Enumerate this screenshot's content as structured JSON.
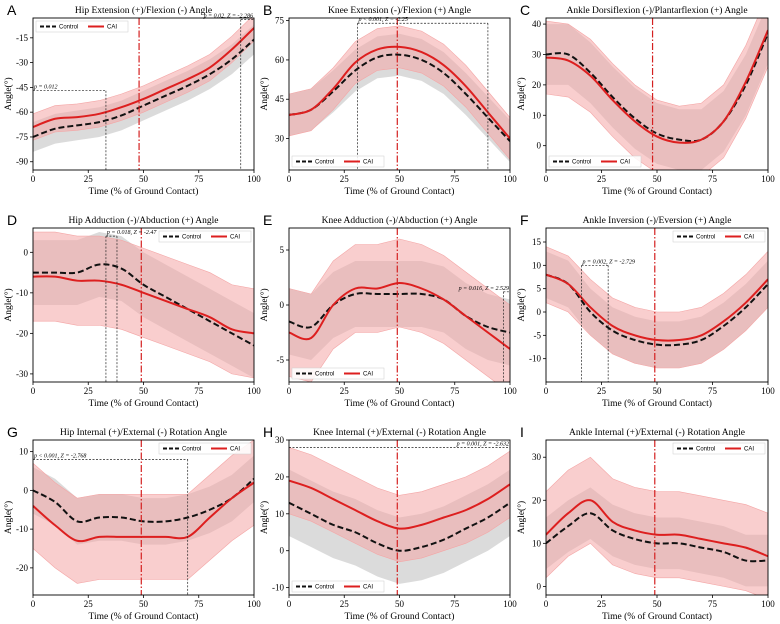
{
  "colors": {
    "control": "#111111",
    "cai": "#dd1f1f",
    "control_band": "#cfcfcf",
    "cai_band": "#f4a6a6",
    "marker": "#d42020"
  },
  "legend": {
    "control": "Control",
    "cai": "CAI"
  },
  "chart_data": [
    {
      "label": "A",
      "title": "Hip Extension (+)/Flexion (-) Angle",
      "type": "line",
      "xlabel": "Time (% of Ground Contact)",
      "ylabel": "Angle(°)",
      "xlim": [
        0,
        100
      ],
      "ylim": [
        -95,
        -3
      ],
      "xticks": [
        "0",
        "25",
        "50",
        "75",
        "100"
      ],
      "yticks": [
        -90,
        -75,
        -60,
        -45,
        -30,
        -15
      ],
      "ytick_labels": [
        "-90",
        "-75",
        "-60",
        "-45",
        "-30",
        "-15"
      ],
      "x": [
        0,
        10,
        20,
        30,
        40,
        50,
        60,
        70,
        80,
        90,
        100
      ],
      "series": [
        {
          "name": "Control",
          "values": [
            -75,
            -70,
            -68,
            -66,
            -62,
            -56,
            -50,
            -44,
            -37,
            -28,
            -16
          ],
          "sd": [
            9,
            9,
            9,
            9,
            9,
            9,
            9,
            9,
            9,
            9,
            9
          ]
        },
        {
          "name": "CAI",
          "values": [
            -69,
            -64,
            -63,
            -61,
            -57,
            -52,
            -46,
            -40,
            -33,
            -22,
            -9
          ],
          "sd": [
            8,
            8,
            8,
            8,
            8,
            8,
            8,
            8,
            8,
            8,
            8
          ]
        }
      ],
      "marker_x": 48,
      "annotations": [
        {
          "text": "p = 0.012",
          "region": [
            0,
            33
          ],
          "level": -47,
          "pos": "left"
        },
        {
          "text": "p = 0.02, Z = -2.286",
          "region": [
            94,
            100
          ],
          "level": -4,
          "pos": "right"
        }
      ],
      "legend_loc": "upper left"
    },
    {
      "label": "B",
      "title": "Knee Extension (-)/Flexion (+) Angle",
      "type": "line",
      "xlabel": "Time (% of Ground Contact)",
      "ylabel": "Angle(°)",
      "xlim": [
        0,
        100
      ],
      "ylim": [
        18,
        76
      ],
      "xticks": [
        "0",
        "25",
        "50",
        "75",
        "100"
      ],
      "yticks": [
        30,
        45,
        60,
        75
      ],
      "ytick_labels": [
        "30",
        "45",
        "60",
        "75"
      ],
      "x": [
        0,
        10,
        20,
        30,
        40,
        50,
        60,
        70,
        80,
        90,
        100
      ],
      "series": [
        {
          "name": "Control",
          "values": [
            39,
            41,
            48,
            56,
            61,
            62,
            60,
            55,
            47,
            38,
            29
          ],
          "sd": [
            8,
            8,
            8,
            8,
            8,
            8,
            8,
            8,
            8,
            8,
            8
          ]
        },
        {
          "name": "CAI",
          "values": [
            39,
            41,
            49,
            59,
            64,
            65,
            63,
            58,
            50,
            40,
            30
          ],
          "sd": [
            8,
            8,
            8,
            8,
            8,
            8,
            8,
            8,
            8,
            8,
            8
          ]
        }
      ],
      "marker_x": 49,
      "annotations": [
        {
          "text": "p < 0.001, Z = -2.25",
          "region": [
            31,
            90
          ],
          "level": 74,
          "pos": "left"
        }
      ],
      "legend_loc": "lower left"
    },
    {
      "label": "C",
      "title": "Ankle Dorsiflexion (-)/Plantarflexion (+) Angle",
      "type": "line",
      "xlabel": "Time (% of Ground Contact)",
      "ylabel": "Angle(°)",
      "xlim": [
        0,
        100
      ],
      "ylim": [
        -8,
        42
      ],
      "xticks": [
        "0",
        "25",
        "50",
        "75",
        "100"
      ],
      "yticks": [
        0,
        10,
        20,
        30,
        40
      ],
      "ytick_labels": [
        "0",
        "10",
        "20",
        "30",
        "40"
      ],
      "x": [
        0,
        10,
        20,
        30,
        40,
        50,
        60,
        70,
        80,
        90,
        100
      ],
      "series": [
        {
          "name": "Control",
          "values": [
            30,
            30,
            24,
            16,
            9,
            4,
            2,
            2,
            8,
            20,
            37
          ],
          "sd": [
            10,
            10,
            10,
            10,
            10,
            10,
            10,
            10,
            10,
            10,
            10
          ]
        },
        {
          "name": "CAI",
          "values": [
            29,
            28,
            23,
            15,
            8,
            3,
            1,
            2,
            8,
            21,
            38
          ],
          "sd": [
            12,
            12,
            12,
            12,
            12,
            12,
            12,
            12,
            12,
            12,
            12
          ]
        }
      ],
      "marker_x": 48,
      "annotations": [],
      "legend_loc": "lower left"
    },
    {
      "label": "D",
      "title": "Hip Adduction (-)/Abduction (+) Angle",
      "type": "line",
      "xlabel": "Time (% of Ground Contact)",
      "ylabel": "Angle(°)",
      "xlim": [
        0,
        100
      ],
      "ylim": [
        -32,
        6
      ],
      "xticks": [
        "0",
        "25",
        "50",
        "75",
        "100"
      ],
      "yticks": [
        -30,
        -20,
        -10,
        0
      ],
      "ytick_labels": [
        "-30",
        "-20",
        "-10",
        "0"
      ],
      "x": [
        0,
        10,
        20,
        30,
        40,
        50,
        60,
        70,
        80,
        90,
        100
      ],
      "series": [
        {
          "name": "Control",
          "values": [
            -5,
            -5,
            -5,
            -3,
            -4,
            -8,
            -11,
            -14,
            -17,
            -20,
            -23
          ],
          "sd": [
            8,
            8,
            8,
            8,
            8,
            8,
            8,
            8,
            8,
            8,
            8
          ]
        },
        {
          "name": "CAI",
          "values": [
            -6,
            -6,
            -7,
            -7,
            -8,
            -10,
            -12,
            -14,
            -16,
            -19,
            -20
          ],
          "sd": [
            11,
            11,
            11,
            11,
            11,
            11,
            11,
            11,
            11,
            11,
            11
          ]
        }
      ],
      "marker_x": 49,
      "annotations": [
        {
          "text": "p = 0.018, Z = -2.47",
          "region": [
            33,
            38
          ],
          "level": 4,
          "pos": "left"
        }
      ],
      "legend_loc": "upper right"
    },
    {
      "label": "E",
      "title": "Knee Adduction (-)/Abduction (+) Angle",
      "type": "line",
      "xlabel": "Time (% of Ground Contact)",
      "ylabel": "Angle(°)",
      "xlim": [
        0,
        100
      ],
      "ylim": [
        -7,
        7
      ],
      "xticks": [
        "0",
        "25",
        "50",
        "75",
        "100"
      ],
      "yticks": [
        -5,
        0,
        5
      ],
      "ytick_labels": [
        "-5",
        "0",
        "5"
      ],
      "x": [
        0,
        10,
        20,
        30,
        40,
        50,
        60,
        70,
        80,
        90,
        100
      ],
      "series": [
        {
          "name": "Control",
          "values": [
            -1.5,
            -2,
            0,
            1,
            1,
            1,
            1,
            0.5,
            -1,
            -2,
            -2.5
          ],
          "sd": [
            3,
            3,
            3,
            3,
            3,
            3,
            3,
            3,
            3,
            3,
            3
          ]
        },
        {
          "name": "CAI",
          "values": [
            -2.5,
            -3,
            0,
            1.5,
            1.5,
            2,
            1.5,
            0.5,
            -1,
            -2.5,
            -4
          ],
          "sd": [
            4,
            4,
            4,
            4,
            4,
            4,
            4,
            4,
            4,
            4,
            4
          ]
        }
      ],
      "marker_x": 49,
      "annotations": [
        {
          "text": "p = 0.016, Z = 2.529",
          "region": [
            97,
            100
          ],
          "level": 1.2,
          "pos": "right"
        }
      ],
      "legend_loc": "lower left"
    },
    {
      "label": "F",
      "title": "Ankle Inversion (-)/Eversion (+) Angle",
      "type": "line",
      "xlabel": "Time (% of Ground Contact)",
      "ylabel": "Angle(°)",
      "xlim": [
        0,
        100
      ],
      "ylim": [
        -15,
        18
      ],
      "xticks": [
        "0",
        "25",
        "50",
        "75",
        "100"
      ],
      "yticks": [
        -10,
        -5,
        0,
        5,
        10,
        15
      ],
      "ytick_labels": [
        "-10",
        "-5",
        "0",
        "5",
        "10",
        "15"
      ],
      "x": [
        0,
        10,
        20,
        30,
        40,
        50,
        60,
        70,
        80,
        90,
        100
      ],
      "series": [
        {
          "name": "Control",
          "values": [
            8,
            6,
            0,
            -4,
            -6,
            -7,
            -7,
            -6,
            -3,
            1,
            6
          ],
          "sd": [
            5,
            5,
            5,
            5,
            5,
            5,
            5,
            5,
            5,
            5,
            5
          ]
        },
        {
          "name": "CAI",
          "values": [
            8,
            6,
            1,
            -3,
            -5,
            -6,
            -6,
            -5,
            -2,
            2,
            7
          ],
          "sd": [
            6,
            6,
            6,
            6,
            6,
            6,
            6,
            6,
            6,
            6,
            6
          ]
        }
      ],
      "marker_x": 49,
      "annotations": [
        {
          "text": "p = 0.002, Z = -2.729",
          "region": [
            16,
            28
          ],
          "level": 10,
          "pos": "left"
        }
      ],
      "legend_loc": "upper right"
    },
    {
      "label": "G",
      "title": "Hip Internal (+)/External (-) Rotation Angle",
      "type": "line",
      "xlabel": "Time (% of Ground Contact)",
      "ylabel": "Angle(°)",
      "xlim": [
        0,
        100
      ],
      "ylim": [
        -27,
        13
      ],
      "xticks": [
        "0",
        "25",
        "50",
        "75",
        "100"
      ],
      "yticks": [
        -20,
        -10,
        0,
        10
      ],
      "ytick_labels": [
        "-20",
        "-10",
        "0",
        "10"
      ],
      "x": [
        0,
        10,
        20,
        30,
        40,
        50,
        60,
        70,
        80,
        90,
        100
      ],
      "series": [
        {
          "name": "Control",
          "values": [
            0,
            -3,
            -8,
            -7,
            -7,
            -8,
            -8,
            -7,
            -5,
            -2,
            3
          ],
          "sd": [
            6,
            6,
            6,
            6,
            6,
            6,
            6,
            6,
            6,
            6,
            6
          ]
        },
        {
          "name": "CAI",
          "values": [
            -4,
            -9,
            -13,
            -12,
            -12,
            -12,
            -12,
            -12,
            -7,
            -2,
            2
          ],
          "sd": [
            11,
            11,
            11,
            11,
            11,
            11,
            11,
            11,
            11,
            11,
            11
          ]
        }
      ],
      "marker_x": 49,
      "annotations": [
        {
          "text": "p < 0.001, Z = -2.768",
          "region": [
            0,
            70
          ],
          "level": 8,
          "pos": "left"
        }
      ],
      "legend_loc": "upper right"
    },
    {
      "label": "H",
      "title": "Knee Internal (+)/External (-) Rotation Angle",
      "type": "line",
      "xlabel": "Time (% of Ground Contact)",
      "ylabel": "Angle(°)",
      "xlim": [
        0,
        100
      ],
      "ylim": [
        -12,
        30
      ],
      "xticks": [
        "0",
        "25",
        "50",
        "75",
        "100"
      ],
      "yticks": [
        -10,
        0,
        10,
        20,
        30
      ],
      "ytick_labels": [
        "-10",
        "0",
        "10",
        "20",
        "30"
      ],
      "x": [
        0,
        10,
        20,
        30,
        40,
        50,
        60,
        70,
        80,
        90,
        100
      ],
      "series": [
        {
          "name": "Control",
          "values": [
            13,
            10,
            7,
            5,
            2,
            0,
            1,
            3,
            6,
            9,
            13
          ],
          "sd": [
            9,
            9,
            9,
            9,
            9,
            9,
            9,
            9,
            9,
            9,
            9
          ]
        },
        {
          "name": "CAI",
          "values": [
            19,
            17,
            14,
            11,
            8,
            6,
            7,
            9,
            11,
            14,
            18
          ],
          "sd": [
            9,
            9,
            9,
            9,
            9,
            9,
            9,
            9,
            9,
            9,
            9
          ]
        }
      ],
      "marker_x": 49,
      "annotations": [
        {
          "text": "p = 0.001, Z = -2.632",
          "region": [
            0,
            100
          ],
          "level": 28,
          "pos": "right"
        }
      ],
      "legend_loc": "lower left"
    },
    {
      "label": "I",
      "title": "Ankle Internal (+)/External (-) Rotation Angle",
      "type": "line",
      "xlabel": "Time (% of Ground Contact)",
      "ylabel": "Angle(°)",
      "xlim": [
        0,
        100
      ],
      "ylim": [
        -2,
        34
      ],
      "xticks": [
        "0",
        "25",
        "50",
        "75",
        "100"
      ],
      "yticks": [
        0,
        10,
        20,
        30
      ],
      "ytick_labels": [
        "0",
        "10",
        "20",
        "30"
      ],
      "x": [
        0,
        10,
        20,
        30,
        40,
        50,
        60,
        70,
        80,
        90,
        100
      ],
      "series": [
        {
          "name": "Control",
          "values": [
            10,
            14,
            17,
            13,
            11,
            10,
            10,
            9,
            8,
            6,
            6
          ],
          "sd": [
            6,
            6,
            6,
            6,
            6,
            6,
            6,
            6,
            6,
            6,
            6
          ]
        },
        {
          "name": "CAI",
          "values": [
            12,
            17,
            20,
            15,
            13,
            12,
            12,
            11,
            10,
            9,
            7
          ],
          "sd": [
            10,
            10,
            10,
            10,
            10,
            10,
            10,
            10,
            10,
            10,
            10
          ]
        }
      ],
      "marker_x": 49,
      "annotations": [],
      "legend_loc": "upper right"
    }
  ]
}
